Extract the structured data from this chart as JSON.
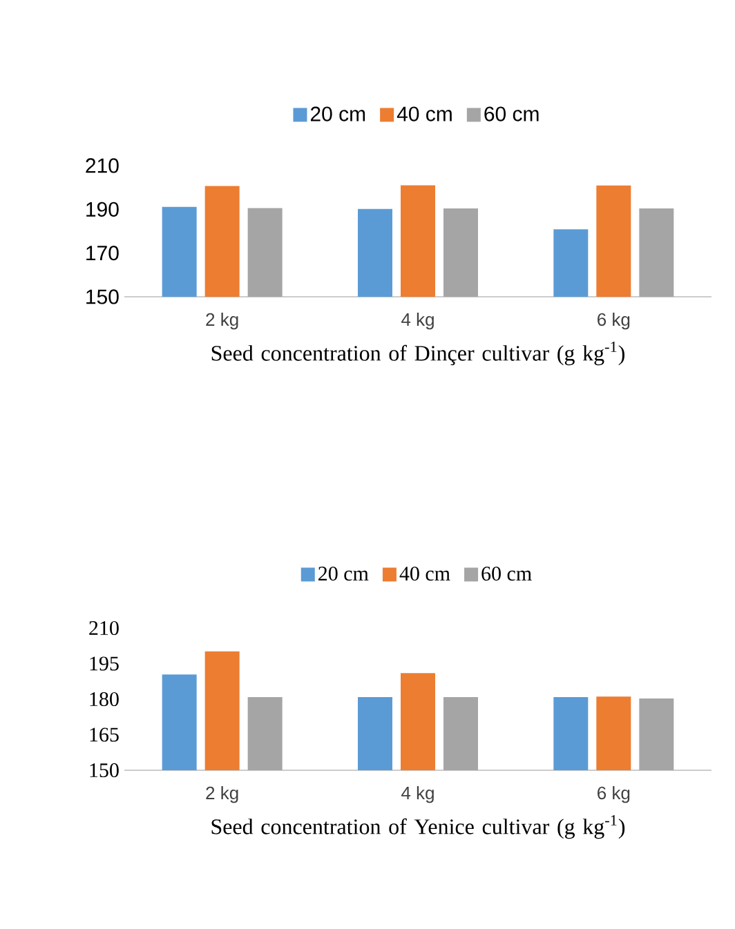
{
  "chart_data": [
    {
      "type": "bar",
      "categories": [
        "2 kg",
        "4 kg",
        "6 kg"
      ],
      "xlabel": "Seed concentration of Dinçer cultivar (g kg$^{-1}$)",
      "ylim": [
        150,
        210
      ],
      "yticks": [
        150,
        170,
        190,
        210
      ],
      "legend": "top",
      "series": [
        {
          "name": "20 cm",
          "color": "#5b9bd5",
          "values": [
            191.1,
            190.2,
            180.9
          ]
        },
        {
          "name": "40 cm",
          "color": "#ed7d31",
          "values": [
            200.7,
            201.0,
            200.9
          ]
        },
        {
          "name": "60 cm",
          "color": "#a5a5a5",
          "values": [
            190.6,
            190.4,
            190.4
          ]
        }
      ]
    },
    {
      "type": "bar",
      "categories": [
        "2 kg",
        "4 kg",
        "6 kg"
      ],
      "xlabel": "Seed concentration of Yenice cultivar (g kg$^{-1}$)",
      "ylim": [
        150,
        210
      ],
      "yticks": [
        150,
        165,
        180,
        195,
        210
      ],
      "legend": "top",
      "series": [
        {
          "name": "20 cm",
          "color": "#5b9bd5",
          "values": [
            190.4,
            180.9,
            180.9
          ]
        },
        {
          "name": "40 cm",
          "color": "#ed7d31",
          "values": [
            200.2,
            191.0,
            181.1
          ]
        },
        {
          "name": "60 cm",
          "color": "#a5a5a5",
          "values": [
            180.9,
            180.9,
            180.3
          ]
        }
      ]
    }
  ]
}
